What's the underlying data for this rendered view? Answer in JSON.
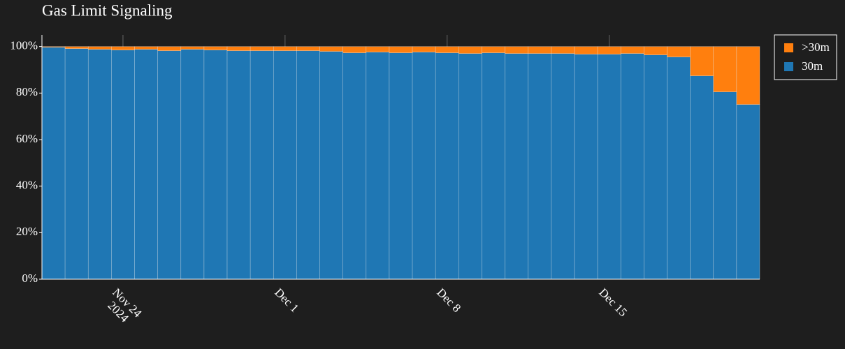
{
  "chart_data": {
    "type": "bar",
    "stacked": true,
    "title": "Gas Limit Signaling",
    "x": [
      "2024-11-21",
      "2024-11-22",
      "2024-11-23",
      "2024-11-24",
      "2024-11-25",
      "2024-11-26",
      "2024-11-27",
      "2024-11-28",
      "2024-11-29",
      "2024-11-30",
      "2024-12-01",
      "2024-12-02",
      "2024-12-03",
      "2024-12-04",
      "2024-12-05",
      "2024-12-06",
      "2024-12-07",
      "2024-12-08",
      "2024-12-09",
      "2024-12-10",
      "2024-12-11",
      "2024-12-12",
      "2024-12-13",
      "2024-12-14",
      "2024-12-15",
      "2024-12-16",
      "2024-12-17",
      "2024-12-18",
      "2024-12-19",
      "2024-12-20",
      "2024-12-21"
    ],
    "series": [
      {
        "name": "30m",
        "color": "#1f77b4",
        "values": [
          99.7,
          99.1,
          98.8,
          98.5,
          98.8,
          98.2,
          98.8,
          98.5,
          98.2,
          98.2,
          98.2,
          98.2,
          97.9,
          97.3,
          97.6,
          97.3,
          97.6,
          97.3,
          97.0,
          97.3,
          97.0,
          97.0,
          97.0,
          96.7,
          96.7,
          97.0,
          96.4,
          95.5,
          87.4,
          80.5,
          75.1
        ]
      },
      {
        "name": ">30m",
        "color": "#ff7f0e",
        "values": [
          0.3,
          0.9,
          1.2,
          1.5,
          1.2,
          1.8,
          1.2,
          1.5,
          1.8,
          1.8,
          1.8,
          1.8,
          2.1,
          2.7,
          2.4,
          2.7,
          2.4,
          2.7,
          3.0,
          2.7,
          3.0,
          3.0,
          3.0,
          3.3,
          3.3,
          3.0,
          3.6,
          4.5,
          12.6,
          19.5,
          24.9
        ]
      }
    ],
    "xticks": [
      {
        "value": "2024-11-24",
        "label": "Nov 24\n2024"
      },
      {
        "value": "2024-12-01",
        "label": "Dec 1"
      },
      {
        "value": "2024-12-08",
        "label": "Dec 8"
      },
      {
        "value": "2024-12-15",
        "label": "Dec 15"
      }
    ],
    "ylim": [
      0,
      105
    ],
    "yticks": [
      {
        "value": 0,
        "label": "0%"
      },
      {
        "value": 20,
        "label": "20%"
      },
      {
        "value": 40,
        "label": "40%"
      },
      {
        "value": 60,
        "label": "60%"
      },
      {
        "value": 80,
        "label": "80%"
      },
      {
        "value": 100,
        "label": "100%"
      }
    ],
    "legend": "top-right"
  }
}
